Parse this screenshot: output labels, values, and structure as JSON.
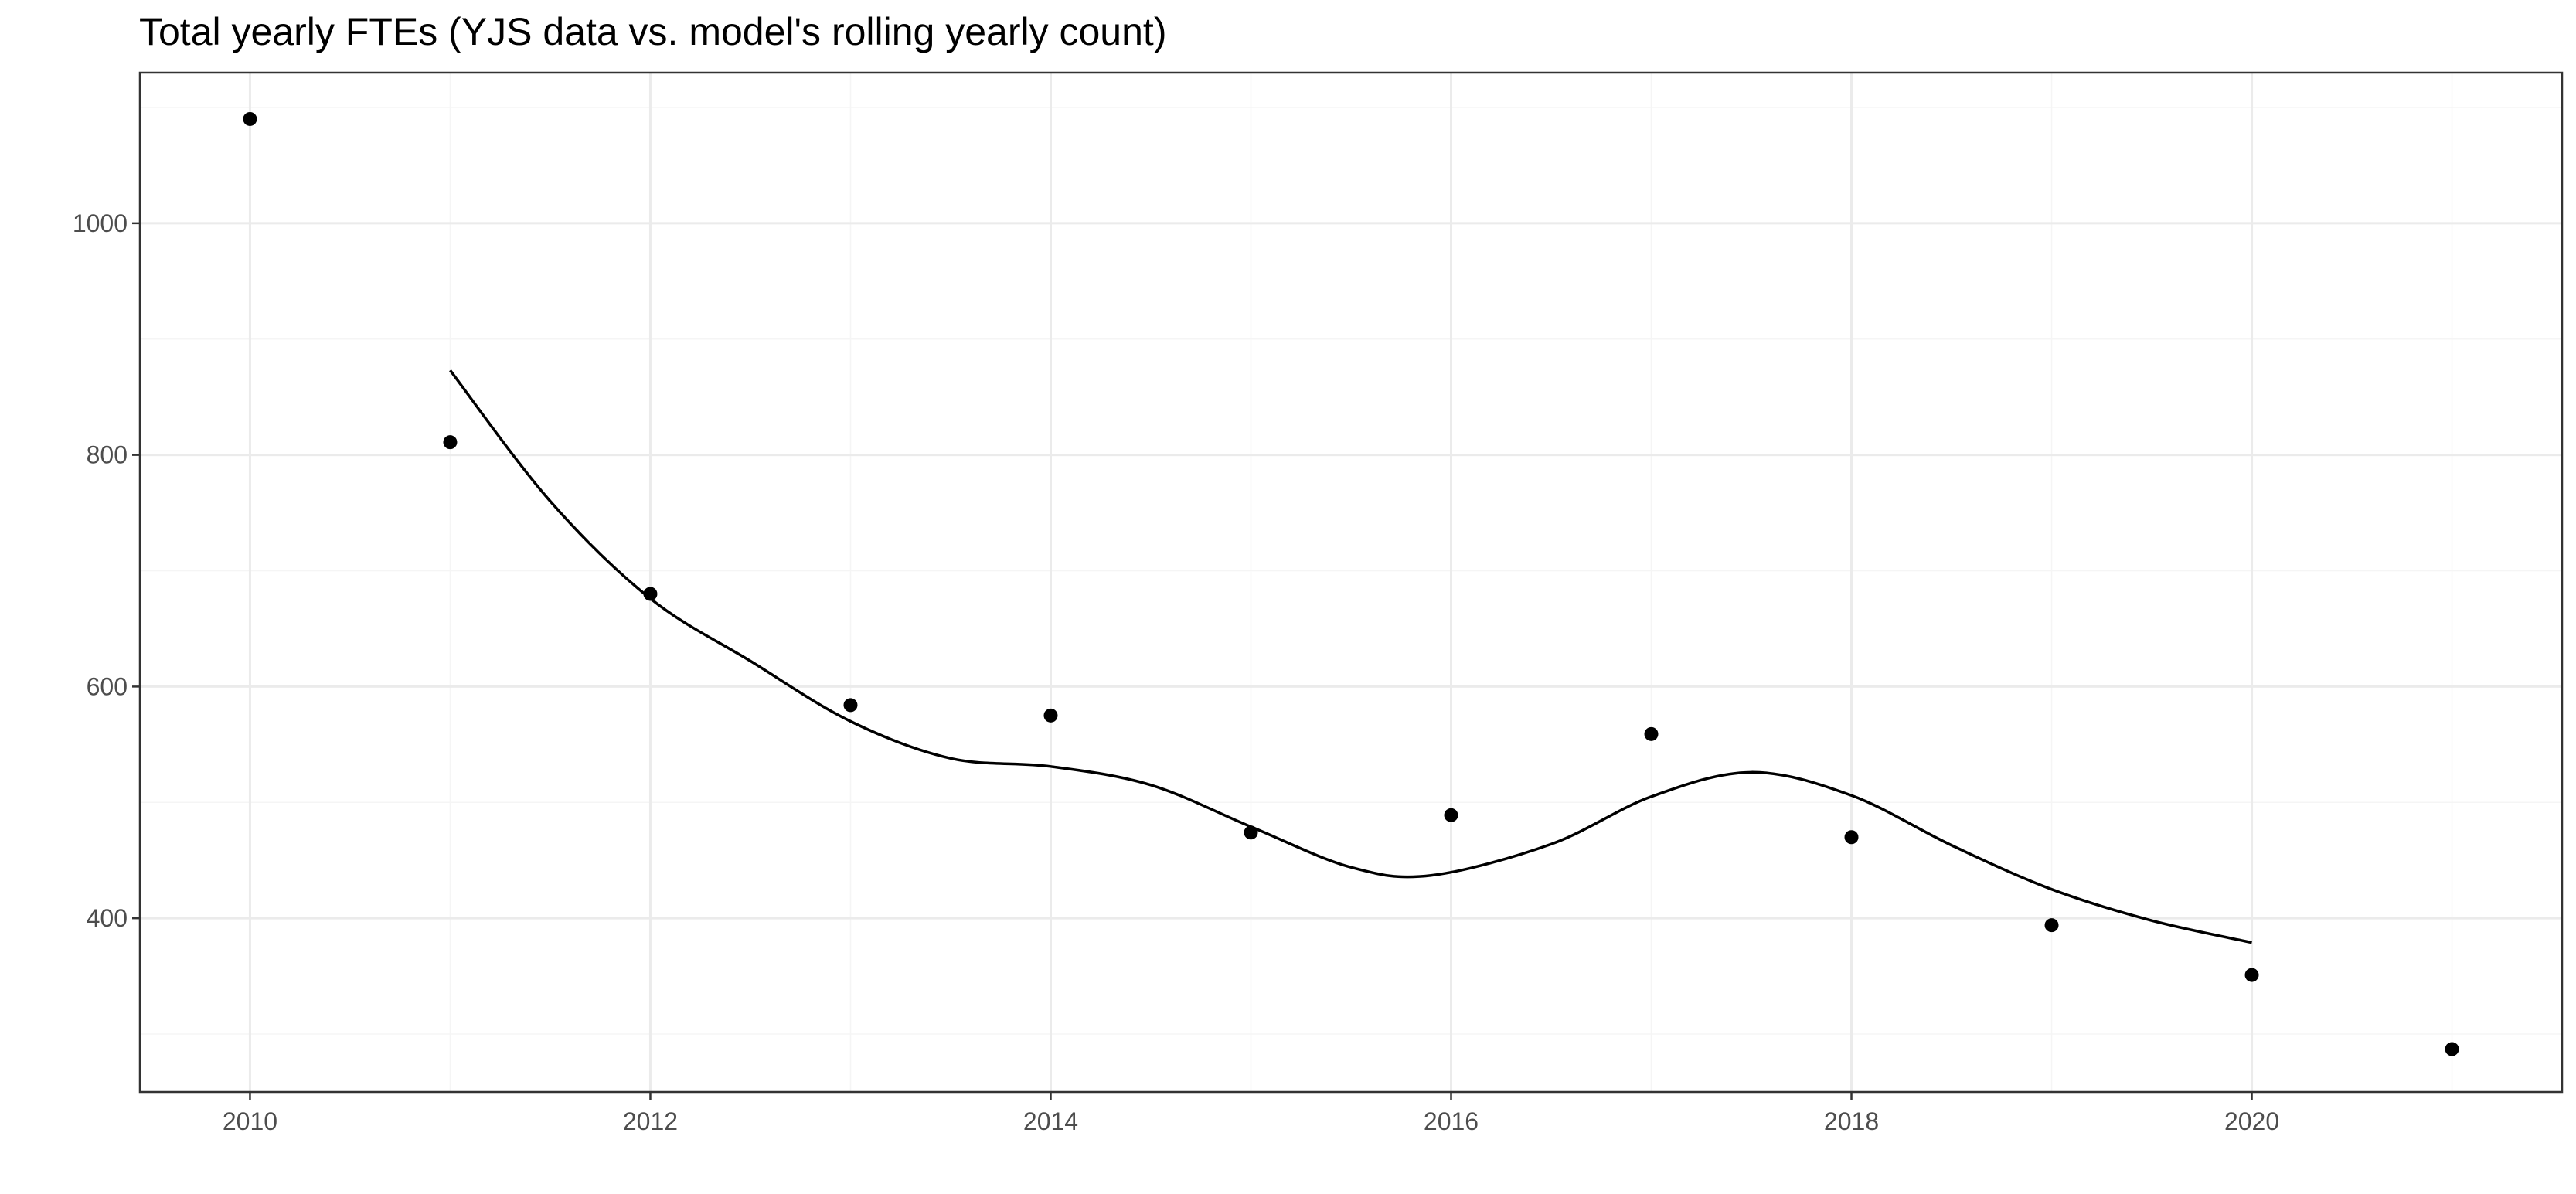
{
  "chart_data": {
    "type": "scatter",
    "title": "Total yearly FTEs (YJS data vs. model's rolling yearly count)",
    "xlabel": "",
    "ylabel": "",
    "xlim": [
      2009.45,
      2021.55
    ],
    "ylim": [
      250,
      1130
    ],
    "x_ticks": [
      2010,
      2012,
      2014,
      2016,
      2018,
      2020
    ],
    "y_ticks": [
      400,
      600,
      800,
      1000
    ],
    "grid": true,
    "legend": "none",
    "colors": {
      "points": "#000000",
      "line": "#000000",
      "grid_major": "#ebebeb",
      "grid_minor": "#f5f5f5",
      "panel_border": "#333333"
    },
    "series": [
      {
        "type": "scatter",
        "x": [
          2010,
          2011,
          2012,
          2013,
          2014,
          2015,
          2016,
          2017,
          2018,
          2019,
          2020,
          2021
        ],
        "values": [
          1090,
          811,
          680,
          584,
          575,
          474,
          489,
          559,
          470,
          394,
          351,
          287
        ]
      },
      {
        "type": "line",
        "x": [
          2011,
          2011.5,
          2012,
          2012.5,
          2013,
          2013.5,
          2014,
          2014.5,
          2015,
          2015.5,
          2015.9,
          2016.5,
          2017,
          2017.5,
          2018,
          2018.5,
          2019,
          2019.5,
          2020
        ],
        "values": [
          873,
          760,
          676,
          622,
          570,
          538,
          531,
          515,
          479,
          444,
          437,
          464,
          505,
          526,
          506,
          463,
          425,
          398,
          379
        ]
      }
    ]
  }
}
